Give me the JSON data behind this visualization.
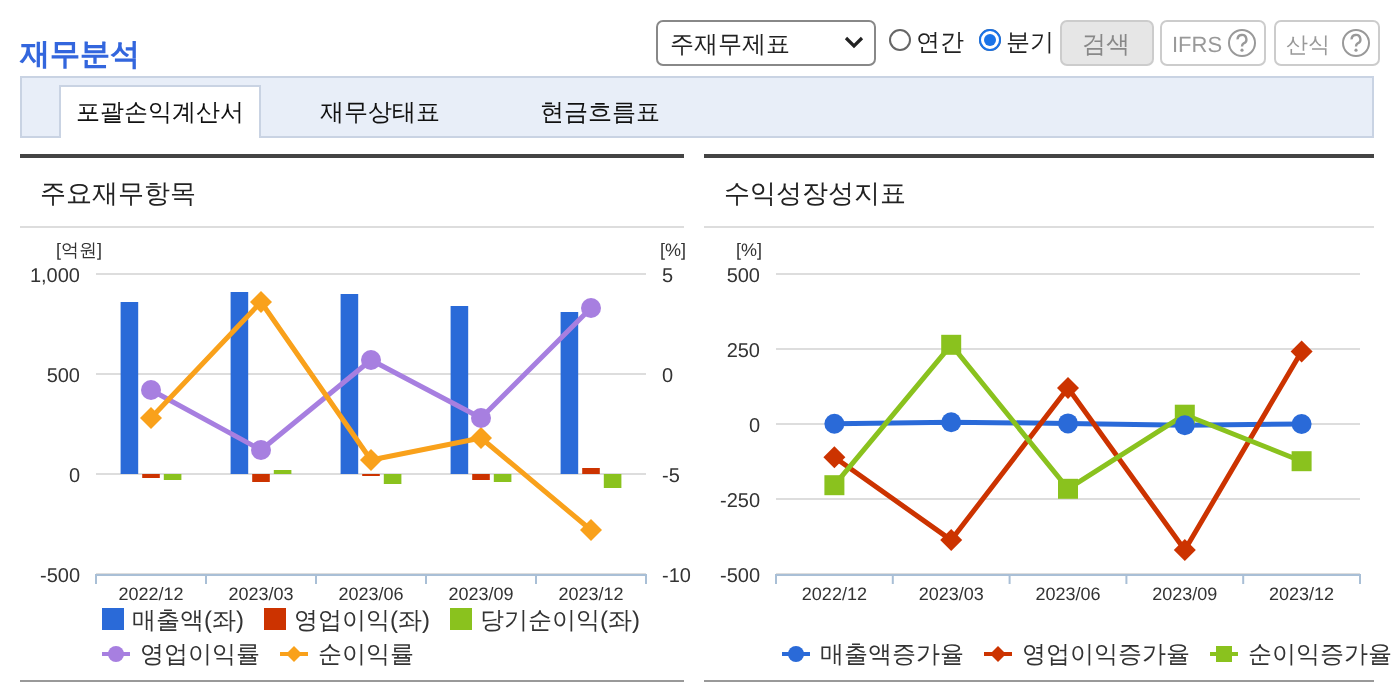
{
  "chart_data": [
    {
      "type": "other",
      "title": "재무분석",
      "annotations": [
        "주재무제표",
        "연간",
        "분기",
        "검색",
        "IFRS",
        "산식",
        "포괄손익계산서",
        "재무상태표",
        "현금흐름표"
      ]
    },
    {
      "type": "bar",
      "title": "주요재무항목",
      "ylabel": "[억원]",
      "y2label": "[%]",
      "categories": [
        "2022/12",
        "2023/03",
        "2023/06",
        "2023/09",
        "2023/12"
      ],
      "ylim": [
        -500,
        1000
      ],
      "yticks": [
        -500,
        0,
        500,
        {
          "value": 1000,
          "label": "1,000"
        }
      ],
      "y2lim": [
        -10,
        5
      ],
      "y2ticks": [
        -10,
        -5,
        0,
        5
      ],
      "grid": "y",
      "legend": "bottom",
      "series": [
        {
          "name": "매출액(좌)",
          "color": "#2a6ad8",
          "values": [
            860,
            910,
            900,
            840,
            810
          ]
        },
        {
          "name": "영업이익(좌)",
          "color": "#cc3300",
          "values": [
            -20,
            -40,
            -10,
            -30,
            30
          ]
        },
        {
          "name": "당기순이익(좌)",
          "color": "#8ac21e",
          "values": [
            -30,
            20,
            -50,
            -40,
            -70
          ]
        },
        {
          "name": "영업이익률",
          "type": "line",
          "axis": "y2",
          "marker": "circle",
          "color": "#a77fe0",
          "values": [
            -0.8,
            -3.8,
            0.7,
            -2.2,
            3.3
          ]
        },
        {
          "name": "순이익률",
          "type": "line",
          "axis": "y2",
          "marker": "diamond",
          "color": "#f9a11b",
          "values": [
            -2.2,
            3.6,
            -4.3,
            -3.2,
            -7.8
          ]
        }
      ]
    },
    {
      "type": "line",
      "title": "수익성장성지표",
      "ylabel": "[%]",
      "categories": [
        "2022/12",
        "2023/03",
        "2023/06",
        "2023/09",
        "2023/12"
      ],
      "ylim": [
        -500,
        500
      ],
      "yticks": [
        -500,
        -250,
        0,
        250,
        500
      ],
      "grid": "y",
      "legend": "bottom",
      "series": [
        {
          "name": "매출액증가율",
          "marker": "circle",
          "color": "#2a6ad8",
          "values": [
            1,
            6,
            2,
            -4,
            0
          ]
        },
        {
          "name": "영업이익증가율",
          "marker": "diamond",
          "color": "#cc3300",
          "values": [
            -111,
            -387,
            120,
            -420,
            242
          ]
        },
        {
          "name": "순이익증가율",
          "marker": "square",
          "color": "#8ac21e",
          "values": [
            -204,
            264,
            -216,
            31,
            -124
          ]
        }
      ]
    }
  ]
}
